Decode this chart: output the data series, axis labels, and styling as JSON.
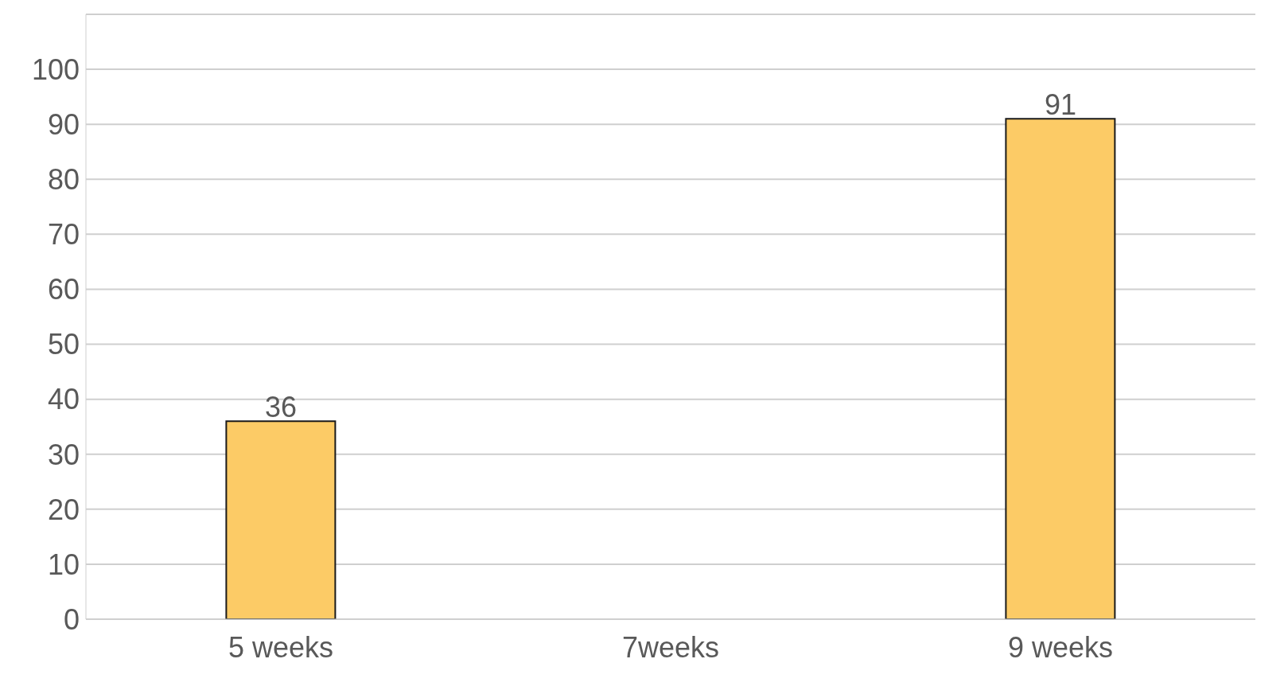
{
  "chart_data": {
    "type": "bar",
    "categories": [
      "5 weeks",
      "7weeks",
      "9 weeks"
    ],
    "values": [
      36,
      null,
      91
    ],
    "color": "#fccb66",
    "ylim": [
      0,
      110
    ],
    "yticks": [
      0,
      10,
      20,
      30,
      40,
      50,
      60,
      70,
      80,
      90,
      100,
      {
        "value": 110,
        "label": null
      }
    ],
    "grid": "y",
    "data_labels": true
  }
}
